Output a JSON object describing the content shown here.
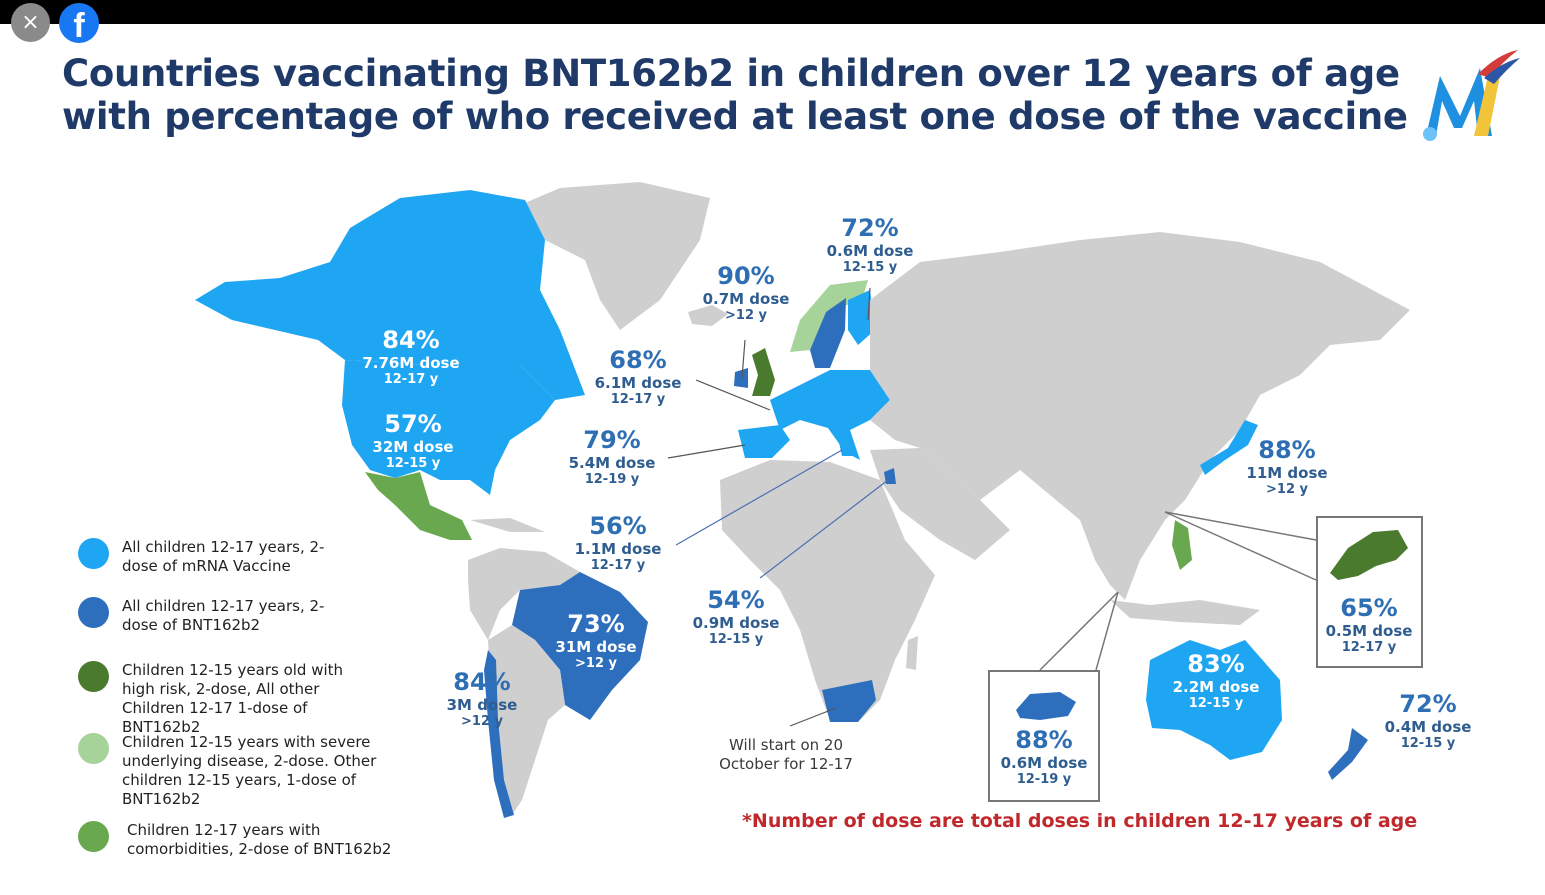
{
  "overlay": {
    "close_icon": "×",
    "facebook_icon": "f"
  },
  "title": "Countries vaccinating BNT162b2 in children over 12 years of age with percentage of who received at least one dose of the vaccine",
  "colors": {
    "light_blue": "#1fa6f2",
    "dark_blue": "#2e6fbd",
    "dark_green": "#4a7a2e",
    "light_green": "#a6d39a",
    "green": "#6aa84f",
    "land_gray": "#cfcfcf"
  },
  "regions": {
    "canada": {
      "pct": "84%",
      "dose": "7.76M dose",
      "age": "12-17 y"
    },
    "usa": {
      "pct": "57%",
      "dose": "32M dose",
      "age": "12-15 y"
    },
    "uk": {
      "pct": "90%",
      "dose": "0.7M dose",
      "age": ">12 y"
    },
    "nordic": {
      "pct": "72%",
      "dose": "0.6M dose",
      "age": "12-15 y"
    },
    "europe": {
      "pct": "68%",
      "dose": "6.1M dose",
      "age": "12-17 y"
    },
    "spain": {
      "pct": "79%",
      "dose": "5.4M dose",
      "age": "12-19 y"
    },
    "greece": {
      "pct": "56%",
      "dose": "1.1M dose",
      "age": "12-17 y"
    },
    "israel": {
      "pct": "54%",
      "dose": "0.9M dose",
      "age": "12-15 y"
    },
    "brazil": {
      "pct": "73%",
      "dose": "31M dose",
      "age": ">12 y"
    },
    "chile": {
      "pct": "84%",
      "dose": "3M dose",
      "age": ">12 y"
    },
    "japan": {
      "pct": "88%",
      "dose": "11M dose",
      "age": ">12 y"
    },
    "hongkong": {
      "pct": "65%",
      "dose": "0.5M dose",
      "age": "12-17 y"
    },
    "singapore": {
      "pct": "88%",
      "dose": "0.6M dose",
      "age": "12-19 y"
    },
    "australia": {
      "pct": "83%",
      "dose": "2.2M dose",
      "age": "12-15 y"
    },
    "newzealand": {
      "pct": "72%",
      "dose": "0.4M dose",
      "age": "12-15 y"
    }
  },
  "south_africa_note": "Will start on 20 October for 12-17",
  "footnote": "*Number of dose are total doses in children 12-17 years of age",
  "legend": [
    {
      "color": "#1fa6f2",
      "text": "All children 12-17 years, 2-dose of mRNA Vaccine"
    },
    {
      "color": "#2e6fbd",
      "text": "All children 12-17 years, 2-dose of BNT162b2"
    },
    {
      "color": "#4a7a2e",
      "text": "Children 12-15 years old with high risk, 2-dose, All other Children 12-17 1-dose of BNT162b2"
    },
    {
      "color": "#a6d39a",
      "text": "Children 12-15 years with severe underlying disease, 2-dose. Other children 12-15 years, 1-dose of BNT162b2"
    },
    {
      "color": "#6aa84f",
      "text": "Children 12-17 years with comorbidities, 2-dose of BNT162b2"
    }
  ]
}
